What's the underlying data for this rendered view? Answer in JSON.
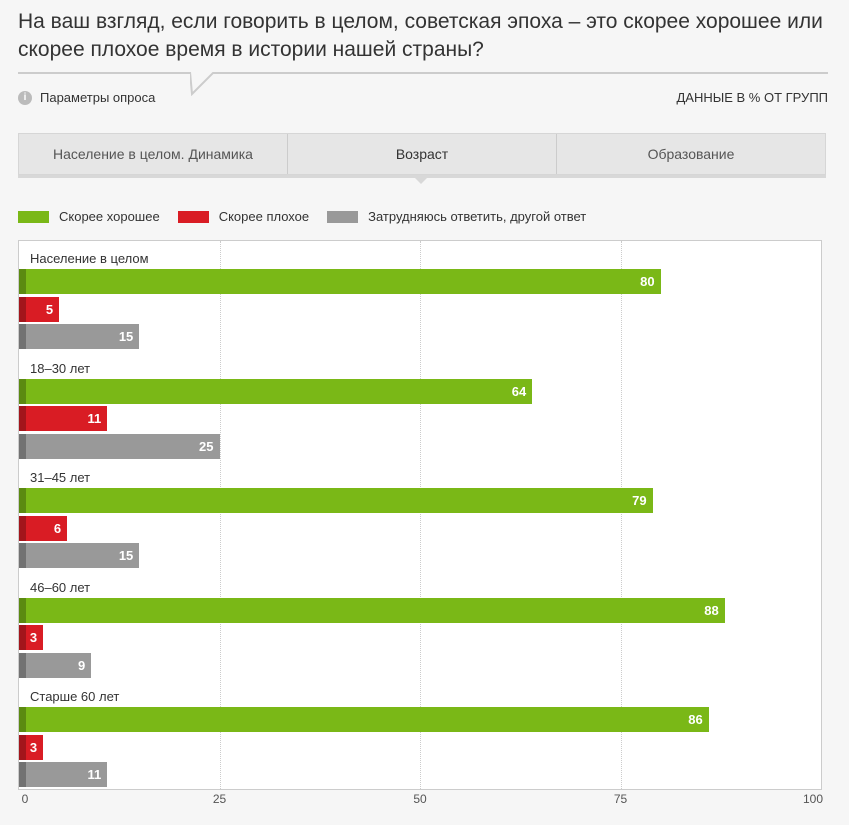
{
  "title": "На ваш взгляд, если говорить в целом, советская эпоха – это скорее хорошее или скорее плохое время в истории нашей страны?",
  "params_label": "Параметры опроса",
  "units_label": "ДАННЫЕ В % ОТ ГРУПП",
  "tabs": [
    "Население в целом. Динамика",
    "Возраст",
    "Образование"
  ],
  "active_tab": 1,
  "chart_data": {
    "type": "bar",
    "orientation": "horizontal",
    "categories": [
      "Население в целом",
      "18–30 лет",
      "31–45 лет",
      "46–60 лет",
      "Старше 60 лет"
    ],
    "series": [
      {
        "name": "Скорее хорошее",
        "color": "#7ab817",
        "values": [
          80,
          64,
          79,
          88,
          86
        ]
      },
      {
        "name": "Скорее плохое",
        "color": "#d91c24",
        "values": [
          5,
          11,
          6,
          3,
          3
        ]
      },
      {
        "name": "Затрудняюсь ответить, другой ответ",
        "color": "#999999",
        "values": [
          15,
          25,
          15,
          9,
          11
        ]
      }
    ],
    "xlim": [
      0,
      100
    ],
    "xticks": [
      "0",
      "25",
      "50",
      "75",
      "100"
    ],
    "grid": true,
    "legend": "top-left"
  }
}
